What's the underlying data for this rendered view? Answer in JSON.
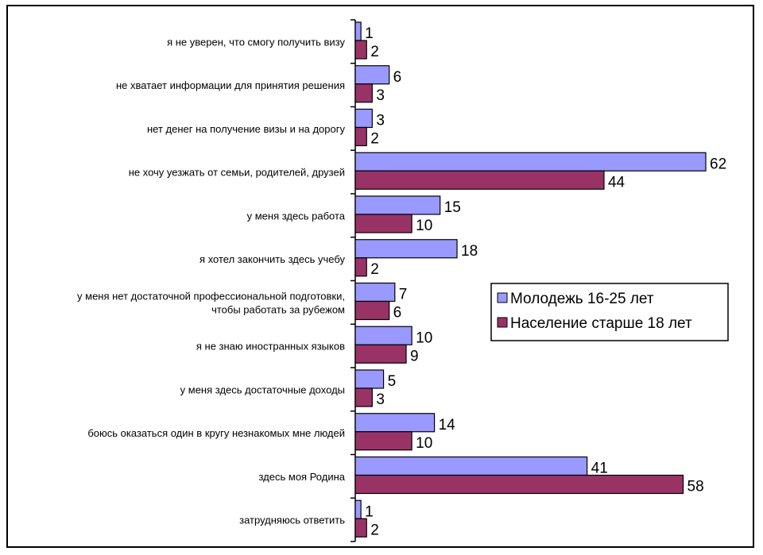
{
  "chart_data": {
    "type": "bar",
    "orientation": "horizontal",
    "categories": [
      "я не уверен, что смогу получить визу",
      "не хватает информации для принятия решения",
      "нет денег на получение визы и на дорогу",
      "не хочу уезжать от семьи, родителей, друзей",
      "у меня здесь работа",
      "я хотел закончить здесь учебу",
      "у меня нет достаточной профессиональной подготовки,\nчтобы работать за рубежом",
      "я не знаю иностранных языков",
      "у меня здесь достаточные доходы",
      "боюсь оказаться один в кругу незнакомых мне людей",
      "здесь моя Родина",
      "затрудняюсь ответить"
    ],
    "series": [
      {
        "name": "Молодежь 16-25 лет",
        "color": "#9999ff",
        "values": [
          1,
          6,
          3,
          62,
          15,
          18,
          7,
          10,
          5,
          14,
          41,
          1
        ]
      },
      {
        "name": "Население старше 18 лет",
        "color": "#993366",
        "values": [
          2,
          3,
          2,
          44,
          10,
          2,
          6,
          9,
          3,
          10,
          58,
          2
        ]
      }
    ],
    "xlim": [
      0,
      62
    ],
    "grid": false,
    "legend": "right",
    "title": "",
    "xlabel": "",
    "ylabel": ""
  }
}
